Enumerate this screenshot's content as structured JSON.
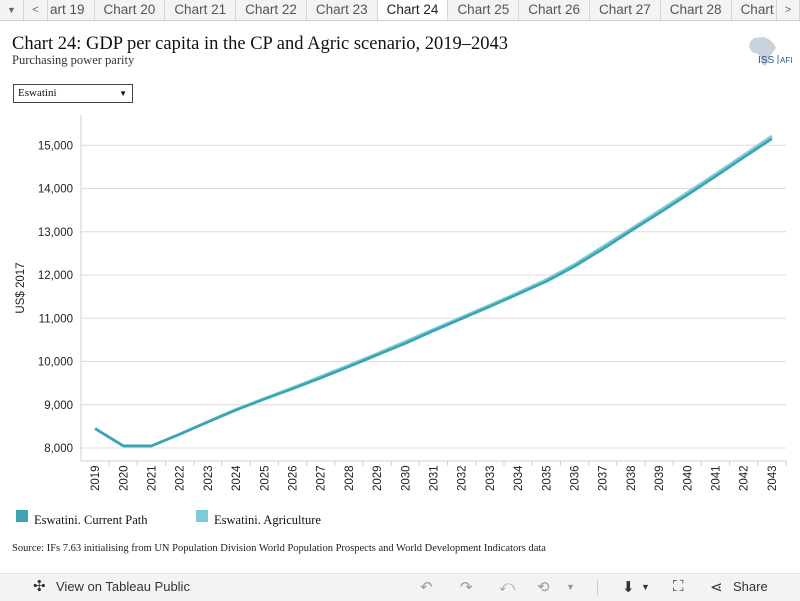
{
  "tabs": {
    "prev_label": "<",
    "next_label": ">",
    "items": [
      "art 19",
      "Chart 20",
      "Chart 21",
      "Chart 22",
      "Chart 23",
      "Chart 24",
      "Chart 25",
      "Chart 26",
      "Chart 27",
      "Chart 28",
      "Chart"
    ],
    "active_index": 5
  },
  "header": {
    "title": "Chart 24: GDP per capita in the CP and Agric scenario, 2019–2043",
    "subtitle": "Purchasing power parity"
  },
  "logo": {
    "text_iss": "ISS",
    "text_afi": "AFI"
  },
  "country_select": {
    "value": "Eswatini"
  },
  "chart_data": {
    "type": "line",
    "x": [
      2019,
      2020,
      2021,
      2022,
      2023,
      2024,
      2025,
      2026,
      2027,
      2028,
      2029,
      2030,
      2031,
      2032,
      2033,
      2034,
      2035,
      2036,
      2037,
      2038,
      2039,
      2040,
      2041,
      2042,
      2043
    ],
    "ylabel": "US$ 2017",
    "ylim": [
      7700,
      15700
    ],
    "yticks": [
      8000,
      9000,
      10000,
      11000,
      12000,
      13000,
      14000,
      15000
    ],
    "ytick_labels": [
      "8,000",
      "9,000",
      "10,000",
      "11,000",
      "12,000",
      "13,000",
      "14,000",
      "15,000"
    ],
    "grid": "horizontal",
    "series": [
      {
        "name": "Eswatini. Current Path",
        "color": "#3ba3b1",
        "values": [
          8450,
          8050,
          8050,
          8320,
          8600,
          8880,
          9130,
          9370,
          9620,
          9880,
          10150,
          10420,
          10710,
          10990,
          11270,
          11560,
          11850,
          12200,
          12600,
          13020,
          13430,
          13850,
          14280,
          14720,
          15150
        ]
      },
      {
        "name": "Eswatini. Agriculture",
        "color": "#7ccbd6",
        "values": [
          8450,
          8050,
          8050,
          8320,
          8610,
          8890,
          9140,
          9390,
          9650,
          9910,
          10180,
          10460,
          10740,
          11020,
          11300,
          11590,
          11890,
          12240,
          12650,
          13060,
          13480,
          13900,
          14330,
          14770,
          15210
        ]
      }
    ]
  },
  "source": "Source: IFs 7.63 initialising from UN Population Division World Population Prospects and World Development Indicators data",
  "footer": {
    "view_label": "View on Tableau Public",
    "share_label": "Share",
    "colors": {
      "icon_gray": "#999999"
    }
  }
}
